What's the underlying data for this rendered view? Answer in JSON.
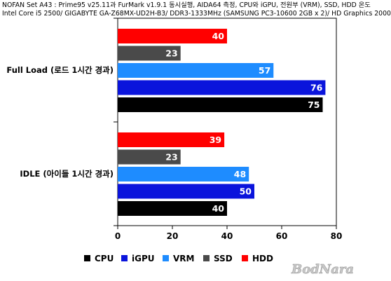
{
  "header": {
    "line1": "NOFAN Set A43 : Prime95 v25.11과 FurMark v1.9.1 동시실행, AIDA64 측정, CPU와 iGPU, 전원부 (VRM), SSD, HDD 온도",
    "line2": "Intel Core i5 2500/ GIGABYTE GA-Z68MX-UD2H-B3/ DDR3-1333MHz (SAMSUNG PC3-10600 2GB x 2)/ HD Graphics 2000"
  },
  "watermark": {
    "text": "BodNara"
  },
  "chart_data": {
    "type": "bar",
    "orientation": "horizontal",
    "categories": [
      "Full Load (로드 1시간 경과)",
      "IDLE (아이들 1시간 경과)"
    ],
    "series": [
      {
        "name": "CPU",
        "color": "#000000",
        "values": [
          75,
          40
        ]
      },
      {
        "name": "iGPU",
        "color": "#0a14dc",
        "values": [
          76,
          50
        ]
      },
      {
        "name": "VRM",
        "color": "#1e8cff",
        "values": [
          57,
          48
        ]
      },
      {
        "name": "SSD",
        "color": "#4a4a4a",
        "values": [
          23,
          23
        ]
      },
      {
        "name": "HDD",
        "color": "#ff0000",
        "values": [
          40,
          39
        ]
      }
    ],
    "xlim": [
      0,
      80
    ],
    "xticks": [
      0,
      20,
      40,
      60,
      80
    ],
    "grid": false,
    "legend_position": "bottom"
  }
}
